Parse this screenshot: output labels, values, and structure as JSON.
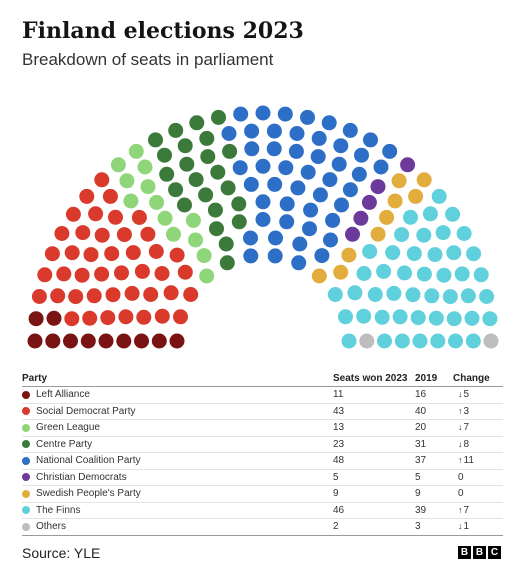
{
  "header": {
    "title": "Finland elections 2023",
    "subtitle": "Breakdown of seats in parliament"
  },
  "table": {
    "headers": {
      "party": "Party",
      "seats": "Seats won 2023",
      "prev": "2019",
      "change": "Change"
    }
  },
  "chart_data": {
    "type": "hemicycle",
    "total_seats": 200,
    "parties": [
      {
        "name": "Left Alliance",
        "seats": 11,
        "prev": "16",
        "change": "5",
        "direction": "down",
        "color": "#7a1414"
      },
      {
        "name": "Social Democrat Party",
        "seats": 43,
        "prev": "40",
        "change": "3",
        "direction": "up",
        "color": "#d93a2b"
      },
      {
        "name": "Green League",
        "seats": 13,
        "prev": "20",
        "change": "7",
        "direction": "down",
        "color": "#8fd67a"
      },
      {
        "name": "Centre Party",
        "seats": 23,
        "prev": "31",
        "change": "8",
        "direction": "down",
        "color": "#3b7a3a"
      },
      {
        "name": "National Coalition Party",
        "seats": 48,
        "prev": "37",
        "change": "11",
        "direction": "up",
        "color": "#2d6ec7"
      },
      {
        "name": "Christian Democrats",
        "seats": 5,
        "prev": "5",
        "change": "0",
        "direction": "none",
        "color": "#6c3a9a"
      },
      {
        "name": "Swedish People's Party",
        "seats": 9,
        "prev": "9",
        "change": "0",
        "direction": "none",
        "color": "#e3ad3e"
      },
      {
        "name": "The Finns",
        "seats": 46,
        "prev": "39",
        "change": "7",
        "direction": "up",
        "color": "#5fd0dc"
      },
      {
        "name": "Others",
        "seats": 2,
        "prev": "3",
        "change": "1",
        "direction": "down",
        "color": "#bdbdbd"
      }
    ]
  },
  "footer": {
    "source": "Source: YLE",
    "logo": [
      "B",
      "B",
      "C"
    ]
  }
}
